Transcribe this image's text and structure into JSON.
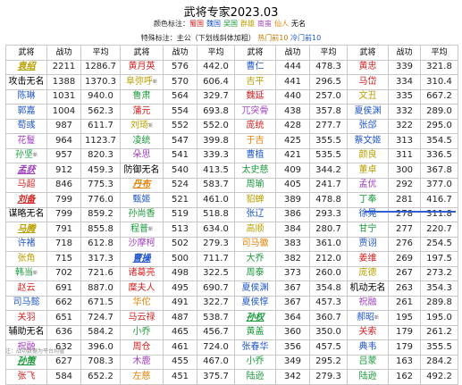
{
  "title": "武将专家2023.03",
  "legend": {
    "prefix": "颜色标注：",
    "items": [
      {
        "label": "蜀国",
        "color": "#d42020"
      },
      {
        "label": "魏国",
        "color": "#1f55c8"
      },
      {
        "label": "吴国",
        "color": "#1a9a3a"
      },
      {
        "label": "群雄",
        "color": "#b8a000"
      },
      {
        "label": "南蛮",
        "color": "#a040c0"
      },
      {
        "label": "仙人",
        "color": "#e08000"
      },
      {
        "label": "无名",
        "color": "#000000"
      }
    ]
  },
  "special": {
    "prefix": "特殊标注：主公（下划线斜体加粗）",
    "hot": "热门前10",
    "cold": "冷门前10"
  },
  "headers": [
    "武将",
    "战功",
    "平均",
    "武将",
    "战功",
    "平均",
    "武将",
    "战功",
    "平均",
    "武将",
    "战功",
    "平均"
  ],
  "rows": [
    [
      [
        "袁绍",
        "qun",
        true,
        ""
      ],
      "2211",
      "1286.7",
      [
        "黄月英",
        "shu",
        false,
        ""
      ],
      "576",
      "442.0",
      [
        "曹仁",
        "wei",
        false,
        ""
      ],
      "444",
      "478.3",
      [
        "黄忠",
        "shu",
        false,
        ""
      ],
      "339",
      "321.8"
    ],
    [
      [
        "攻击无名",
        "none",
        false,
        ""
      ],
      "1388",
      "1370.3",
      [
        "阜弥呼",
        "qun",
        false,
        "新"
      ],
      "570",
      "606.4",
      [
        "吉平",
        "qun",
        false,
        ""
      ],
      "441",
      "296.5",
      [
        "马岱",
        "shu",
        false,
        ""
      ],
      "334",
      "310.4"
    ],
    [
      [
        "陈琳",
        "wei",
        false,
        ""
      ],
      "1031",
      "940.0",
      [
        "鲁肃",
        "wu",
        false,
        ""
      ],
      "564",
      "329.7",
      [
        "魏延",
        "shu",
        false,
        ""
      ],
      "440",
      "257.0",
      [
        "文丑",
        "qun",
        false,
        ""
      ],
      "335",
      "667.2"
    ],
    [
      [
        "郭嘉",
        "wei",
        false,
        ""
      ],
      "1004",
      "562.3",
      [
        "蒲元",
        "shu",
        false,
        ""
      ],
      "554",
      "693.8",
      [
        "兀突骨",
        "nan",
        false,
        ""
      ],
      "438",
      "357.8",
      [
        "夏侯渊",
        "wei",
        false,
        ""
      ],
      "332",
      "289.0"
    ],
    [
      [
        "荀彧",
        "wei",
        false,
        ""
      ],
      "987",
      "611.7",
      [
        "刘琦",
        "qun",
        false,
        "新"
      ],
      "552",
      "552.0",
      [
        "庞统",
        "shu",
        false,
        ""
      ],
      "428",
      "277.7",
      [
        "张郃",
        "wei",
        false,
        ""
      ],
      "322",
      "295.0"
    ],
    [
      [
        "花鬘",
        "nan",
        false,
        ""
      ],
      "964",
      "1123.7",
      [
        "凌统",
        "wu",
        false,
        ""
      ],
      "547",
      "399.8",
      [
        "于吉",
        "xian",
        false,
        ""
      ],
      "425",
      "355.5",
      [
        "蔡文姬",
        "wei",
        false,
        ""
      ],
      "313",
      "354.5"
    ],
    [
      [
        "孙坚",
        "wu",
        false,
        "新"
      ],
      "957",
      "820.3",
      [
        "朵思",
        "nan",
        false,
        ""
      ],
      "541",
      "339.3",
      [
        "曹植",
        "wei",
        false,
        ""
      ],
      "421",
      "535.5",
      [
        "颜良",
        "qun",
        false,
        ""
      ],
      "311",
      "336.5"
    ],
    [
      [
        "孟获",
        "nan",
        true,
        ""
      ],
      "912",
      "459.3",
      [
        "防御无名",
        "none",
        false,
        ""
      ],
      "540",
      "413.5",
      [
        "太史慈",
        "wu",
        false,
        ""
      ],
      "409",
      "344.2",
      [
        "董卓",
        "qun",
        false,
        ""
      ],
      "300",
      "367.8"
    ],
    [
      [
        "马超",
        "shu",
        false,
        ""
      ],
      "846",
      "775.3",
      [
        "丹布",
        "xian",
        true,
        ""
      ],
      "524",
      "583.7",
      [
        "周瑜",
        "wu",
        false,
        ""
      ],
      "405",
      "241.7",
      [
        "孟优",
        "nan",
        false,
        ""
      ],
      "292",
      "377.0"
    ],
    [
      [
        "刘备",
        "shu",
        true,
        ""
      ],
      "799",
      "776.0",
      [
        "甄姬",
        "wei",
        false,
        ""
      ],
      "521",
      "461.0",
      [
        "貂蝉",
        "qun",
        false,
        ""
      ],
      "389",
      "478.8",
      [
        "丁奉",
        "wu",
        false,
        ""
      ],
      "281",
      "416.7"
    ],
    [
      [
        "谋略无名",
        "none",
        false,
        ""
      ],
      "799",
      "859.2",
      [
        "孙尚香",
        "wu",
        false,
        ""
      ],
      "519",
      "518.8",
      [
        "张辽",
        "wei",
        false,
        ""
      ],
      "386",
      "293.3",
      [
        "徐晃",
        "wei",
        false,
        ""
      ],
      "278",
      "311.8"
    ],
    [
      [
        "马腾",
        "qun",
        true,
        ""
      ],
      "791",
      "855.8",
      [
        "程普",
        "wu",
        false,
        "新"
      ],
      "513",
      "634.0",
      [
        "高顺",
        "qun",
        false,
        ""
      ],
      "384",
      "280.7",
      [
        "甘宁",
        "wu",
        false,
        ""
      ],
      "277",
      "220.7"
    ],
    [
      [
        "许褚",
        "wei",
        false,
        ""
      ],
      "718",
      "612.8",
      [
        "沙摩柯",
        "nan",
        false,
        ""
      ],
      "502",
      "279.3",
      [
        "司马徽",
        "xian",
        false,
        ""
      ],
      "383",
      "361.0",
      [
        "贾诩",
        "wei",
        false,
        ""
      ],
      "276",
      "254.5"
    ],
    [
      [
        "张角",
        "qun",
        false,
        ""
      ],
      "715",
      "317.3",
      [
        "曹操",
        "wei",
        true,
        ""
      ],
      "500",
      "711.7",
      [
        "大乔",
        "wu",
        false,
        ""
      ],
      "382",
      "212.0",
      [
        "姜维",
        "shu",
        false,
        ""
      ],
      "269",
      "197.5"
    ],
    [
      [
        "韩当",
        "wu",
        false,
        "新"
      ],
      "702",
      "721.6",
      [
        "诸葛亮",
        "shu",
        false,
        ""
      ],
      "498",
      "322.5",
      [
        "周泰",
        "wu",
        false,
        ""
      ],
      "373",
      "260.0",
      [
        "庞德",
        "qun",
        false,
        ""
      ],
      "267",
      "273.2"
    ],
    [
      [
        "赵云",
        "shu",
        false,
        ""
      ],
      "691",
      "887.0",
      [
        "糜夫人",
        "shu",
        false,
        ""
      ],
      "495",
      "690.7",
      [
        "夏侯渊",
        "wei",
        false,
        ""
      ],
      "367",
      "354.8",
      [
        "机动无名",
        "none",
        false,
        ""
      ],
      "263",
      "354.3"
    ],
    [
      [
        "司马懿",
        "wei",
        false,
        ""
      ],
      "662",
      "671.5",
      [
        "华佗",
        "xian",
        false,
        ""
      ],
      "491",
      "322.7",
      [
        "夏侯惇",
        "wei",
        false,
        ""
      ],
      "367",
      "457.3",
      [
        "祝融",
        "nan",
        false,
        ""
      ],
      "261",
      "289.8"
    ],
    [
      [
        "关羽",
        "shu",
        false,
        ""
      ],
      "651",
      "724.7",
      [
        "马云禄",
        "shu",
        false,
        ""
      ],
      "487",
      "538.7",
      [
        "孙权",
        "wu",
        true,
        ""
      ],
      "364",
      "360.7",
      [
        "郝昭",
        "wei",
        false,
        "新"
      ],
      "195",
      "195.0"
    ],
    [
      [
        "辅助无名",
        "none",
        false,
        ""
      ],
      "636",
      "584.2",
      [
        "小乔",
        "wu",
        false,
        ""
      ],
      "465",
      "456.7",
      [
        "黄盖",
        "wu",
        false,
        ""
      ],
      "360",
      "350.0",
      [
        "关索",
        "shu",
        false,
        ""
      ],
      "179",
      "261.2"
    ],
    [
      [
        "祝融",
        "nan",
        false,
        ""
      ],
      "632",
      "396.0",
      [
        "周仓",
        "shu",
        false,
        ""
      ],
      "461",
      "724.0",
      [
        "张春华",
        "wei",
        false,
        ""
      ],
      "356",
      "457.5",
      [
        "典韦",
        "wei",
        false,
        ""
      ],
      "179",
      "355.5"
    ],
    [
      [
        "孙策",
        "wu",
        true,
        ""
      ],
      "627",
      "708.3",
      [
        "木鹿",
        "nan",
        false,
        ""
      ],
      "455",
      "467.0",
      [
        "小乔",
        "wu",
        false,
        ""
      ],
      "349",
      "295.2",
      [
        "吕蒙",
        "wu",
        false,
        ""
      ],
      "163",
      "284.2"
    ],
    [
      [
        "张飞",
        "shu",
        false,
        ""
      ],
      "584",
      "652.2",
      [
        "左慈",
        "xian",
        false,
        ""
      ],
      "451",
      "375.7",
      [
        "陆逊",
        "wu",
        false,
        ""
      ],
      "342",
      "279.3",
      [
        "陆逊",
        "wu",
        false,
        ""
      ],
      "162",
      "492.2"
    ]
  ],
  "footnote": "注：战功数据为平台均值"
}
